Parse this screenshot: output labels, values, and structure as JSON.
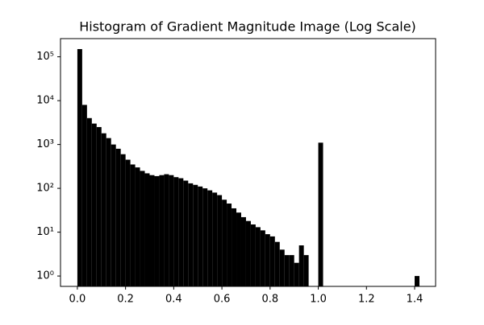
{
  "chart_data": {
    "type": "histogram",
    "title": "Histogram of Gradient Magnitude Image (Log Scale)",
    "bins": [
      0,
      0.02,
      0.04,
      0.06,
      0.08,
      0.1,
      0.12,
      0.14,
      0.16,
      0.18,
      0.2,
      0.22,
      0.24,
      0.26,
      0.28,
      0.3,
      0.32,
      0.34,
      0.36,
      0.38,
      0.4,
      0.42,
      0.44,
      0.46,
      0.48,
      0.5,
      0.52,
      0.54,
      0.56,
      0.58,
      0.6,
      0.62,
      0.64,
      0.66,
      0.68,
      0.7,
      0.72,
      0.74,
      0.76,
      0.78,
      0.8,
      0.82,
      0.84,
      0.86,
      0.88,
      0.9,
      0.92,
      0.94,
      0.96,
      0.98,
      1.0,
      1.02,
      1.04,
      1.06,
      1.08,
      1.1,
      1.12,
      1.14,
      1.16,
      1.18,
      1.2,
      1.22,
      1.24,
      1.26,
      1.28,
      1.3,
      1.32,
      1.34,
      1.36,
      1.38,
      1.4,
      1.42
    ],
    "values": [
      150000,
      8000,
      4000,
      3000,
      2500,
      1800,
      1400,
      1000,
      800,
      600,
      450,
      350,
      300,
      250,
      220,
      200,
      190,
      200,
      210,
      200,
      180,
      170,
      150,
      130,
      120,
      110,
      100,
      90,
      80,
      70,
      55,
      45,
      35,
      28,
      22,
      18,
      15,
      13,
      11,
      9,
      8,
      6,
      4,
      3,
      3,
      2,
      5,
      3,
      0,
      0,
      1100,
      0,
      0,
      0,
      0,
      0,
      0,
      0,
      0,
      0,
      0,
      0,
      0,
      0,
      0,
      0,
      0,
      0,
      0,
      0,
      1
    ],
    "color": "#000000",
    "xlim": [
      -0.07,
      1.487
    ],
    "ylim": [
      0.58,
      260000
    ],
    "log_y": true,
    "xticks": [
      {
        "value": 0,
        "label": "0.0"
      },
      {
        "value": 0.2,
        "label": "0.2"
      },
      {
        "value": 0.4,
        "label": "0.4"
      },
      {
        "value": 0.6,
        "label": "0.6"
      },
      {
        "value": 0.8,
        "label": "0.8"
      },
      {
        "value": 1,
        "label": "1.0"
      },
      {
        "value": 1.2,
        "label": "1.2"
      },
      {
        "value": 1.4,
        "label": "1.4"
      }
    ],
    "yticks": [
      {
        "value": 1,
        "label": "10⁰"
      },
      {
        "value": 10,
        "label": "10¹"
      },
      {
        "value": 100,
        "label": "10²"
      },
      {
        "value": 1000,
        "label": "10³"
      },
      {
        "value": 10000,
        "label": "10⁴"
      },
      {
        "value": 100000,
        "label": "10⁵"
      }
    ]
  }
}
